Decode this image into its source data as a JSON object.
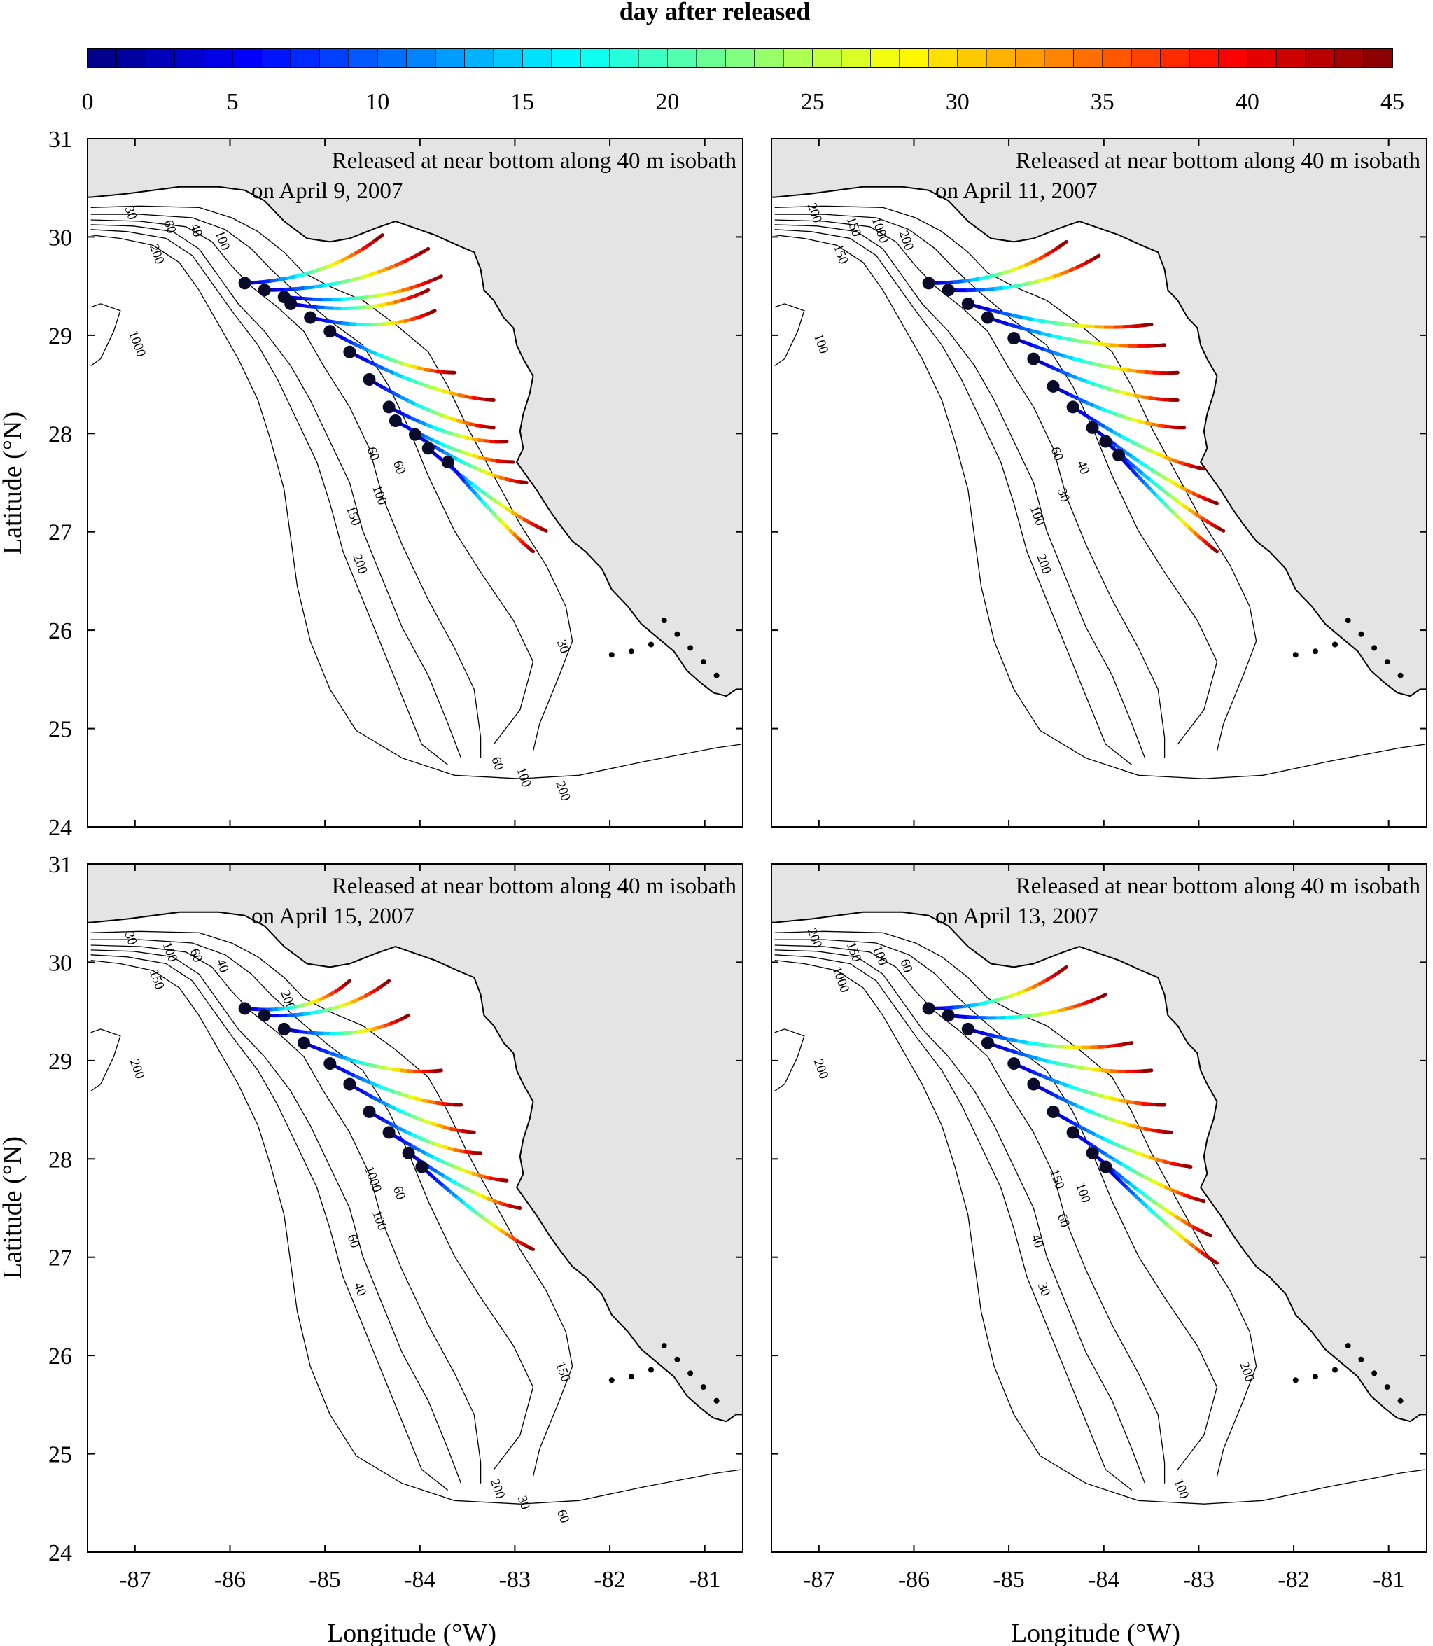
{
  "colorbar": {
    "title": "day after released",
    "ticks": [
      "0",
      "5",
      "10",
      "15",
      "20",
      "25",
      "30",
      "35",
      "40",
      "45"
    ],
    "range": [
      0,
      45
    ],
    "colormap": "jet"
  },
  "axes": {
    "xlabel": "Longitude (°W)",
    "ylabel": "Latitude (°N)",
    "xticks": [
      "-87",
      "-86",
      "-85",
      "-84",
      "-83",
      "-82",
      "-81"
    ],
    "yticks": [
      "24",
      "25",
      "26",
      "27",
      "28",
      "29",
      "30",
      "31"
    ],
    "xlim": [
      -87.5,
      -80.6
    ],
    "ylim": [
      24,
      31
    ]
  },
  "colors": {
    "land": "#e4e4e4",
    "water": "#ffffff",
    "release_marker": "#0a0a2a"
  },
  "panels": [
    {
      "position": "top-left",
      "annotation_line1": "Released at near bottom along 40 m isobath",
      "annotation_line2": "on April 9, 2007",
      "contour_labels": [
        "30",
        "60",
        "40",
        "100",
        "200",
        "1000",
        "60",
        "60",
        "100",
        "150",
        "200",
        "30",
        "60",
        "100",
        "200"
      ]
    },
    {
      "position": "top-right",
      "annotation_line1": "Released at near bottom along 40 m isobath",
      "annotation_line2": "on April 11, 2007",
      "contour_labels": [
        "200",
        "150",
        "1000",
        "200",
        "150",
        "100",
        "60",
        "40",
        "30",
        "100",
        "200"
      ]
    },
    {
      "position": "bottom-left",
      "annotation_line1": "Released at near bottom along 40 m isobath",
      "annotation_line2": "on April 15, 2007",
      "contour_labels": [
        "30",
        "100",
        "60",
        "40",
        "150",
        "200",
        "1000",
        "60",
        "100",
        "60",
        "40",
        "150",
        "200",
        "30",
        "60",
        "200"
      ]
    },
    {
      "position": "bottom-right",
      "annotation_line1": "Released at near bottom along 40 m isobath",
      "annotation_line2": "on April 13, 2007",
      "contour_labels": [
        "200",
        "150",
        "100",
        "60",
        "1000",
        "200",
        "150",
        "100",
        "60",
        "40",
        "30",
        "200",
        "100"
      ]
    }
  ]
}
